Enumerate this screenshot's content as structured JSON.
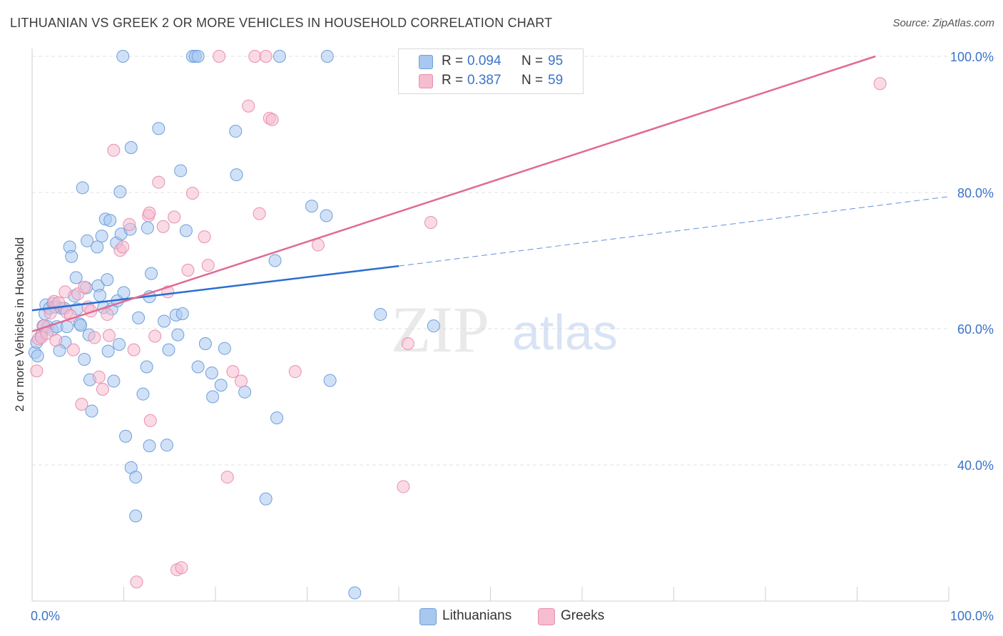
{
  "title": "LITHUANIAN VS GREEK 2 OR MORE VEHICLES IN HOUSEHOLD CORRELATION CHART",
  "source": "Source: ZipAtlas.com",
  "watermark": {
    "zip": "ZIP",
    "atlas": "atlas"
  },
  "colors": {
    "blue_fill": "#a9c8f0",
    "blue_stroke": "#6e9fdc",
    "blue_line": "#2a6ed2",
    "pink_fill": "#f6bcd0",
    "pink_stroke": "#e890ae",
    "pink_line": "#e06a95",
    "value_text": "#3a73c9"
  },
  "stats": {
    "r_label": "R =",
    "n_label": "N =",
    "lithuanians": {
      "r": "0.094",
      "n": "95"
    },
    "greeks": {
      "r": "0.387",
      "n": "59"
    }
  },
  "legend": {
    "lithuanians": "Lithuanians",
    "greeks": "Greeks"
  },
  "chart_data": {
    "type": "scatter",
    "title": "LITHUANIAN VS GREEK 2 OR MORE VEHICLES IN HOUSEHOLD CORRELATION CHART",
    "xlabel": "",
    "ylabel": "2 or more Vehicles in Household",
    "xlim": [
      0,
      100
    ],
    "ylim": [
      20,
      100
    ],
    "x_tick_labels": [
      "0.0%",
      "100.0%"
    ],
    "y_ticks": [
      40,
      60,
      80,
      100
    ],
    "y_tick_labels": [
      "40.0%",
      "60.0%",
      "80.0%",
      "100.0%"
    ],
    "grid": true,
    "legend_position": "bottom",
    "series": [
      {
        "name": "Lithuanians",
        "r": 0.094,
        "n": 95,
        "points": [
          [
            0.3,
            56.5
          ],
          [
            0.6,
            56
          ],
          [
            0.5,
            58
          ],
          [
            1.0,
            59
          ],
          [
            1.2,
            60.4
          ],
          [
            1.4,
            62.2
          ],
          [
            1.5,
            63.5
          ],
          [
            1.7,
            60.3
          ],
          [
            1.9,
            63
          ],
          [
            2.2,
            59.8
          ],
          [
            2.3,
            63.7
          ],
          [
            2.5,
            63.2
          ],
          [
            2.7,
            60.3
          ],
          [
            3.2,
            63
          ],
          [
            3.6,
            58
          ],
          [
            3.5,
            63
          ],
          [
            3.8,
            60.3
          ],
          [
            4.1,
            72
          ],
          [
            4.3,
            70.6
          ],
          [
            4.6,
            64.8
          ],
          [
            4.8,
            67.5
          ],
          [
            4.9,
            62.9
          ],
          [
            5.2,
            60.7
          ],
          [
            5.3,
            60.5
          ],
          [
            5.5,
            80.7
          ],
          [
            5.7,
            55.5
          ],
          [
            5.9,
            66
          ],
          [
            6.0,
            72.9
          ],
          [
            6.2,
            59.1
          ],
          [
            6.3,
            52.5
          ],
          [
            6.5,
            47.9
          ],
          [
            7.1,
            72
          ],
          [
            7.2,
            66.3
          ],
          [
            7.4,
            64.9
          ],
          [
            7.6,
            73.6
          ],
          [
            7.8,
            63.1
          ],
          [
            8.0,
            76.1
          ],
          [
            8.2,
            67.2
          ],
          [
            8.3,
            56.7
          ],
          [
            8.5,
            75.9
          ],
          [
            8.7,
            62.9
          ],
          [
            8.9,
            52.3
          ],
          [
            9.2,
            72.6
          ],
          [
            9.3,
            64.1
          ],
          [
            9.6,
            80.1
          ],
          [
            9.7,
            73.9
          ],
          [
            9.9,
            100
          ],
          [
            10.0,
            65.3
          ],
          [
            10.2,
            44.2
          ],
          [
            10.7,
            74.6
          ],
          [
            10.8,
            86.6
          ],
          [
            10.8,
            39.6
          ],
          [
            11.3,
            38.2
          ],
          [
            11.3,
            32.5
          ],
          [
            12.1,
            50.4
          ],
          [
            12.5,
            54.4
          ],
          [
            12.6,
            74.8
          ],
          [
            12.8,
            42.8
          ],
          [
            12.8,
            64.7
          ],
          [
            13.0,
            68.1
          ],
          [
            13.8,
            89.4
          ],
          [
            14.4,
            61.1
          ],
          [
            14.7,
            42.9
          ],
          [
            15.7,
            62
          ],
          [
            15.9,
            59.1
          ],
          [
            16.2,
            83.2
          ],
          [
            16.4,
            62.2
          ],
          [
            16.8,
            74.4
          ],
          [
            17.5,
            100
          ],
          [
            17.8,
            100
          ],
          [
            18.1,
            100
          ],
          [
            18.1,
            54.4
          ],
          [
            18.9,
            57.8
          ],
          [
            19.6,
            53.5
          ],
          [
            19.7,
            50
          ],
          [
            20.6,
            51.7
          ],
          [
            21.0,
            57.1
          ],
          [
            22.2,
            89
          ],
          [
            22.3,
            82.6
          ],
          [
            23.2,
            50.7
          ],
          [
            26.5,
            70
          ],
          [
            26.7,
            46.9
          ],
          [
            25.5,
            35
          ],
          [
            27.0,
            100
          ],
          [
            30.5,
            78
          ],
          [
            32.2,
            100
          ],
          [
            32.5,
            52.4
          ],
          [
            35.2,
            21.2
          ],
          [
            38.0,
            62.1
          ],
          [
            43.8,
            60.4
          ],
          [
            32.1,
            76.6
          ],
          [
            14.9,
            56.9
          ],
          [
            9.5,
            57.7
          ],
          [
            11.6,
            61.6
          ],
          [
            3.0,
            56.8
          ]
        ]
      },
      {
        "name": "Greeks",
        "r": 0.387,
        "n": 59,
        "points": [
          [
            0.5,
            53.8
          ],
          [
            0.7,
            58.5
          ],
          [
            1.0,
            58.7
          ],
          [
            1.3,
            60.4
          ],
          [
            1.6,
            59.3
          ],
          [
            2.0,
            62.3
          ],
          [
            2.4,
            64
          ],
          [
            2.6,
            58.3
          ],
          [
            2.9,
            63.8
          ],
          [
            3.6,
            65.4
          ],
          [
            3.8,
            62.4
          ],
          [
            4.2,
            61.9
          ],
          [
            4.5,
            56.9
          ],
          [
            5.0,
            65.1
          ],
          [
            5.4,
            48.9
          ],
          [
            5.7,
            66.1
          ],
          [
            6.1,
            63.2
          ],
          [
            6.4,
            62.6
          ],
          [
            6.8,
            58.7
          ],
          [
            7.3,
            52.9
          ],
          [
            7.7,
            51.1
          ],
          [
            8.2,
            62.1
          ],
          [
            8.4,
            59
          ],
          [
            8.9,
            86.2
          ],
          [
            9.6,
            71.5
          ],
          [
            9.9,
            72
          ],
          [
            10.6,
            75.3
          ],
          [
            11.1,
            56.9
          ],
          [
            12.7,
            76.6
          ],
          [
            12.8,
            77
          ],
          [
            12.9,
            46.5
          ],
          [
            13.4,
            58.9
          ],
          [
            13.8,
            81.5
          ],
          [
            14.3,
            75
          ],
          [
            14.8,
            65.4
          ],
          [
            15.5,
            76.4
          ],
          [
            15.8,
            24.6
          ],
          [
            16.3,
            24.9
          ],
          [
            17.0,
            68.6
          ],
          [
            17.5,
            79.9
          ],
          [
            18.8,
            73.5
          ],
          [
            19.2,
            69.3
          ],
          [
            21.3,
            38.2
          ],
          [
            21.9,
            53.7
          ],
          [
            22.8,
            52.3
          ],
          [
            23.6,
            92.7
          ],
          [
            24.3,
            100
          ],
          [
            24.8,
            76.9
          ],
          [
            25.5,
            100
          ],
          [
            25.9,
            90.9
          ],
          [
            26.2,
            90.7
          ],
          [
            28.7,
            53.7
          ],
          [
            31.2,
            72.3
          ],
          [
            40.5,
            36.8
          ],
          [
            41.0,
            57.8
          ],
          [
            43.5,
            75.6
          ],
          [
            11.4,
            22.8
          ],
          [
            20.4,
            100
          ],
          [
            92.5,
            96
          ]
        ]
      }
    ],
    "trend_lines": [
      {
        "series": "Lithuanians",
        "solid_from": [
          0,
          62.7
        ],
        "solid_to": [
          40,
          69.2
        ],
        "dashed_to": [
          100,
          79.4
        ]
      },
      {
        "series": "Greeks",
        "from": [
          0,
          59.6
        ],
        "to": [
          92,
          100
        ]
      }
    ]
  }
}
